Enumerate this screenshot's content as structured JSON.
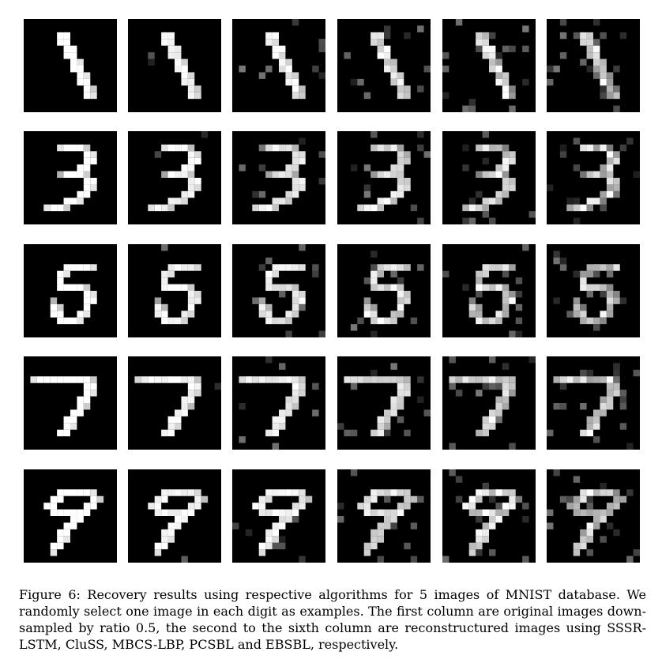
{
  "figure": {
    "caption": "Figure 6: Recovery results using respective algorithms for 5 images of MNIST database. We randomly select one image in each digit as examples. The first column are original images down-sampled by ratio 0.5, the second to the sixth column are reconstructured images using SSSR-LSTM, CluSS, MBCS-LBP, PCSBL and EBSBL, respectively.",
    "rows": [
      {
        "digit": "1",
        "columns": [
          "original",
          "SSSR-LSTM",
          "CluSS",
          "MBCS-LBP",
          "PCSBL",
          "EBSBL"
        ]
      },
      {
        "digit": "3",
        "columns": [
          "original",
          "SSSR-LSTM",
          "CluSS",
          "MBCS-LBP",
          "PCSBL",
          "EBSBL"
        ]
      },
      {
        "digit": "5",
        "columns": [
          "original",
          "SSSR-LSTM",
          "CluSS",
          "MBCS-LBP",
          "PCSBL",
          "EBSBL"
        ]
      },
      {
        "digit": "7",
        "columns": [
          "original",
          "SSSR-LSTM",
          "CluSS",
          "MBCS-LBP",
          "PCSBL",
          "EBSBL"
        ]
      },
      {
        "digit": "9",
        "columns": [
          "original",
          "SSSR-LSTM",
          "CluSS",
          "MBCS-LBP",
          "PCSBL",
          "EBSBL"
        ]
      }
    ],
    "colors": {
      "background": "#000000",
      "stroke": "#ffffff"
    }
  }
}
